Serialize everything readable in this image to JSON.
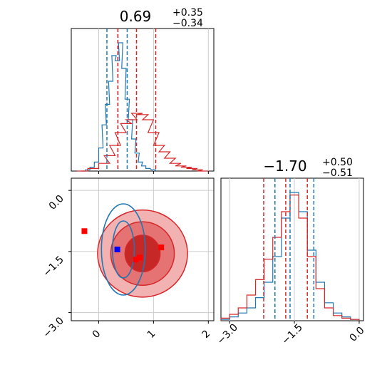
{
  "chart_data": {
    "type": "corner",
    "series": [
      {
        "name": "",
        "color": "#1f77b4"
      },
      {
        "name": "",
        "color": "#d62728"
      }
    ],
    "panels": [
      {
        "panel": "histogram-param-1",
        "type": "histogram",
        "title_value": "0.69",
        "title_plus": "+0.35",
        "title_minus": "−0.34",
        "xlim": [
          -0.5,
          2.1
        ],
        "xticks": [
          0,
          1,
          2
        ],
        "quantile_lines": [
          {
            "series": "blue",
            "values": [
              0.15,
              0.35,
              0.52
            ]
          },
          {
            "series": "red",
            "values": [
              0.35,
              0.69,
              1.04
            ]
          }
        ],
        "series_bins": [
          {
            "series": "blue",
            "x": [
              -0.28,
              -0.2,
              -0.12,
              -0.04,
              0.04,
              0.1,
              0.16,
              0.22,
              0.28,
              0.34,
              0.4,
              0.46,
              0.52,
              0.58,
              0.64,
              0.7,
              0.76,
              0.82,
              0.9,
              1.0
            ],
            "counts": [
              0.0,
              0.01,
              0.03,
              0.07,
              0.18,
              0.36,
              0.52,
              0.7,
              0.9,
              0.86,
              1.0,
              0.8,
              0.56,
              0.4,
              0.25,
              0.14,
              0.07,
              0.04,
              0.02,
              0.01
            ]
          },
          {
            "series": "red",
            "x": [
              -0.3,
              -0.1,
              0.1,
              0.2,
              0.3,
              0.4,
              0.5,
              0.6,
              0.7,
              0.8,
              0.9,
              1.0,
              1.1,
              1.2,
              1.3,
              1.4,
              1.5,
              1.6,
              1.7,
              1.8,
              1.9
            ],
            "counts": [
              0.0,
              0.02,
              0.06,
              0.12,
              0.2,
              0.3,
              0.37,
              0.4,
              0.45,
              0.44,
              0.4,
              0.3,
              0.2,
              0.15,
              0.1,
              0.06,
              0.04,
              0.03,
              0.02,
              0.01,
              0.0
            ]
          }
        ]
      },
      {
        "panel": "histogram-param-2",
        "type": "histogram",
        "title_value": "−1.70",
        "title_plus": "+0.50",
        "title_minus": "−0.51",
        "xlim": [
          -3.2,
          0.1
        ],
        "xticks": [
          -3.0,
          -1.5,
          0.0
        ],
        "xtick_labels": [
          "−3.0",
          "−1.5",
          "0.0"
        ],
        "quantile_lines": [
          {
            "series": "red",
            "values": [
              -2.21,
              -1.7,
              -1.2
            ]
          },
          {
            "series": "blue",
            "values": [
              -1.95,
              -1.6,
              -1.05
            ]
          }
        ],
        "series_bins": [
          {
            "series": "blue",
            "x": [
              -3.1,
              -2.9,
              -2.7,
              -2.5,
              -2.3,
              -2.1,
              -1.9,
              -1.7,
              -1.5,
              -1.3,
              -1.1,
              -0.9,
              -0.7,
              -0.5,
              -0.3,
              -0.1
            ],
            "counts": [
              0.01,
              0.03,
              0.06,
              0.1,
              0.18,
              0.3,
              0.5,
              0.8,
              1.0,
              0.85,
              0.55,
              0.3,
              0.14,
              0.06,
              0.03,
              0.01
            ]
          },
          {
            "series": "red",
            "x": [
              -3.1,
              -2.9,
              -2.7,
              -2.5,
              -2.3,
              -2.1,
              -1.9,
              -1.7,
              -1.5,
              -1.3,
              -1.1,
              -0.9,
              -0.7,
              -0.5,
              -0.3,
              -0.1
            ],
            "counts": [
              0.02,
              0.05,
              0.1,
              0.2,
              0.32,
              0.48,
              0.65,
              0.85,
              0.98,
              0.8,
              0.5,
              0.25,
              0.1,
              0.04,
              0.02,
              0.01
            ]
          }
        ]
      },
      {
        "panel": "scatter-contour",
        "type": "contour",
        "xlim": [
          -0.5,
          2.1
        ],
        "ylim": [
          -3.2,
          0.3
        ],
        "xticks": [
          0,
          1,
          2
        ],
        "yticks": [
          0.0,
          -1.5,
          -3.0
        ],
        "ytick_labels": [
          "0.0",
          "−1.5",
          "−3.0"
        ],
        "grid": true,
        "red_contours": [
          {
            "cx": 0.8,
            "cy": -1.55,
            "rx": 0.32,
            "ry": 0.45,
            "fill": "#c62828"
          },
          {
            "cx": 0.8,
            "cy": -1.55,
            "rx": 0.58,
            "ry": 0.78,
            "fill": "#e57373"
          },
          {
            "cx": 0.8,
            "cy": -1.55,
            "rx": 0.82,
            "ry": 1.07,
            "fill": "#f2b2b2"
          }
        ],
        "blue_contours": [
          {
            "cx": 0.45,
            "cy": -1.45,
            "rx": 0.2,
            "ry": 0.7
          },
          {
            "cx": 0.45,
            "cy": -1.45,
            "rx": 0.4,
            "ry": 1.12
          }
        ],
        "markers": [
          {
            "x": -0.26,
            "y": -1.0,
            "color": "#ff0000",
            "label": "red-square-marker"
          },
          {
            "x": 0.34,
            "y": -1.45,
            "color": "#0000ff",
            "label": "blue-square-marker"
          },
          {
            "x": 0.68,
            "y": -1.7,
            "color": "#ff0000",
            "label": "red-square-marker"
          },
          {
            "x": 0.75,
            "y": -1.65,
            "color": "#ff0000",
            "label": "red-square-marker"
          },
          {
            "x": 1.14,
            "y": -1.4,
            "color": "#ff0000",
            "label": "red-square-marker"
          }
        ]
      }
    ]
  }
}
